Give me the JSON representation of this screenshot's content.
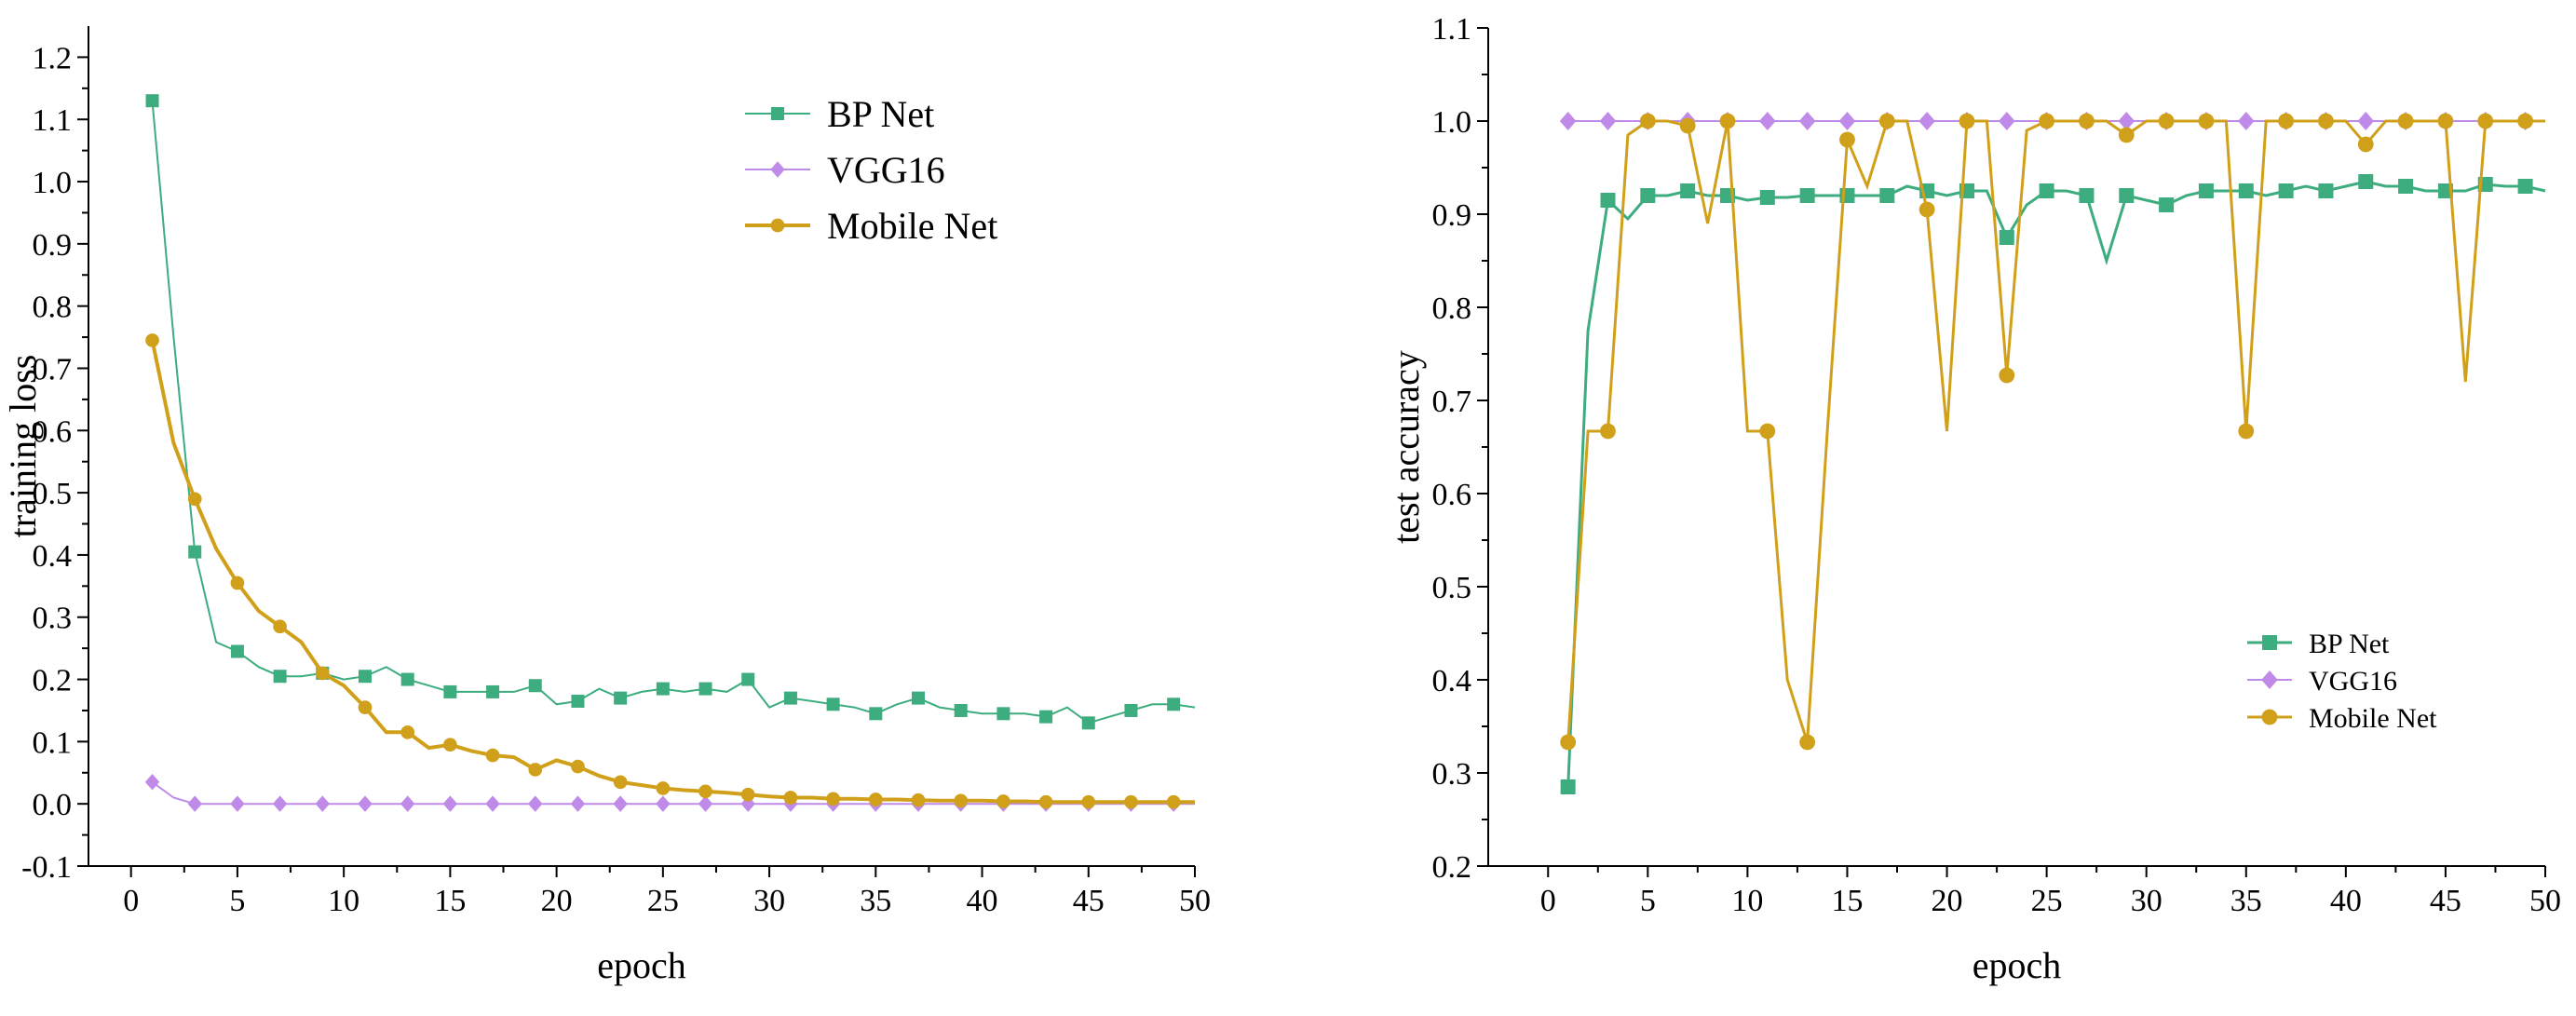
{
  "chart_data": [
    {
      "type": "line",
      "title": "",
      "xlabel": "epoch",
      "ylabel": "training loss",
      "xlim": [
        -2,
        50
      ],
      "ylim": [
        -0.1,
        1.25
      ],
      "xticks": [
        "0",
        "5",
        "10",
        "15",
        "20",
        "25",
        "30",
        "35",
        "40",
        "45",
        "50"
      ],
      "yticks": [
        "-0.1",
        "0.0",
        "0.1",
        "0.2",
        "0.3",
        "0.4",
        "0.5",
        "0.6",
        "0.7",
        "0.8",
        "0.9",
        "1.0",
        "1.1",
        "1.2"
      ],
      "legend_position": "top-right",
      "series": [
        {
          "name": "BP Net",
          "color": "#3dac7e",
          "marker": "square",
          "x": [
            1,
            2,
            3,
            4,
            5,
            6,
            7,
            8,
            9,
            10,
            11,
            12,
            13,
            14,
            15,
            16,
            17,
            18,
            19,
            20,
            21,
            22,
            23,
            24,
            25,
            26,
            27,
            28,
            29,
            30,
            31,
            32,
            33,
            34,
            35,
            36,
            37,
            38,
            39,
            40,
            41,
            42,
            43,
            44,
            45,
            46,
            47,
            48,
            49,
            50
          ],
          "values": [
            1.13,
            0.75,
            0.405,
            0.26,
            0.245,
            0.22,
            0.205,
            0.205,
            0.21,
            0.2,
            0.205,
            0.22,
            0.2,
            0.19,
            0.18,
            0.18,
            0.18,
            0.18,
            0.19,
            0.16,
            0.165,
            0.185,
            0.17,
            0.18,
            0.185,
            0.18,
            0.185,
            0.18,
            0.2,
            0.155,
            0.17,
            0.165,
            0.16,
            0.155,
            0.145,
            0.16,
            0.17,
            0.155,
            0.15,
            0.145,
            0.145,
            0.145,
            0.14,
            0.155,
            0.13,
            0.14,
            0.15,
            0.16,
            0.16,
            0.155
          ]
        },
        {
          "name": "VGG16",
          "color": "#c08ae8",
          "marker": "diamond",
          "x": [
            1,
            2,
            3,
            4,
            5,
            6,
            7,
            8,
            9,
            10,
            11,
            12,
            13,
            14,
            15,
            16,
            17,
            18,
            19,
            20,
            21,
            22,
            23,
            24,
            25,
            26,
            27,
            28,
            29,
            30,
            31,
            32,
            33,
            34,
            35,
            36,
            37,
            38,
            39,
            40,
            41,
            42,
            43,
            44,
            45,
            46,
            47,
            48,
            49,
            50
          ],
          "values": [
            0.035,
            0.01,
            0.0,
            0.0,
            0.0,
            0.0,
            0.0,
            0.0,
            0.0,
            0.0,
            0.0,
            0.0,
            0.0,
            0.0,
            0.0,
            0.0,
            0.0,
            0.0,
            0.0,
            0.0,
            0.0,
            0.0,
            0.0,
            0.0,
            0.0,
            0.0,
            0.0,
            0.0,
            0.0,
            0.0,
            0.0,
            0.0,
            0.0,
            0.0,
            0.0,
            0.0,
            0.0,
            0.0,
            0.0,
            0.0,
            0.0,
            0.0,
            0.0,
            0.0,
            0.0,
            0.0,
            0.0,
            0.0,
            0.0,
            0.0
          ]
        },
        {
          "name": "Mobile Net",
          "color": "#d1a01b",
          "marker": "circle",
          "x": [
            1,
            2,
            3,
            4,
            5,
            6,
            7,
            8,
            9,
            10,
            11,
            12,
            13,
            14,
            15,
            16,
            17,
            18,
            19,
            20,
            21,
            22,
            23,
            24,
            25,
            26,
            27,
            28,
            29,
            30,
            31,
            32,
            33,
            34,
            35,
            36,
            37,
            38,
            39,
            40,
            41,
            42,
            43,
            44,
            45,
            46,
            47,
            48,
            49,
            50
          ],
          "values": [
            0.745,
            0.58,
            0.49,
            0.41,
            0.355,
            0.31,
            0.285,
            0.26,
            0.21,
            0.19,
            0.155,
            0.115,
            0.115,
            0.09,
            0.095,
            0.085,
            0.078,
            0.075,
            0.055,
            0.07,
            0.06,
            0.045,
            0.035,
            0.03,
            0.025,
            0.022,
            0.02,
            0.018,
            0.015,
            0.012,
            0.01,
            0.01,
            0.008,
            0.008,
            0.007,
            0.007,
            0.006,
            0.005,
            0.005,
            0.005,
            0.004,
            0.004,
            0.003,
            0.003,
            0.003,
            0.003,
            0.003,
            0.003,
            0.003,
            0.003
          ]
        }
      ]
    },
    {
      "type": "line",
      "title": "",
      "xlabel": "epoch",
      "ylabel": "test accuracy",
      "xlim": [
        -3,
        50
      ],
      "ylim": [
        0.2,
        1.1
      ],
      "xticks": [
        "0",
        "5",
        "10",
        "15",
        "20",
        "25",
        "30",
        "35",
        "40",
        "45",
        "50"
      ],
      "yticks": [
        "0.2",
        "0.3",
        "0.4",
        "0.5",
        "0.6",
        "0.7",
        "0.8",
        "0.9",
        "1.0",
        "1.1"
      ],
      "legend_position": "bottom-right",
      "series": [
        {
          "name": "BP Net",
          "color": "#3dac7e",
          "marker": "square",
          "x": [
            1,
            2,
            3,
            4,
            5,
            6,
            7,
            8,
            9,
            10,
            11,
            12,
            13,
            14,
            15,
            16,
            17,
            18,
            19,
            20,
            21,
            22,
            23,
            24,
            25,
            26,
            27,
            28,
            29,
            30,
            31,
            32,
            33,
            34,
            35,
            36,
            37,
            38,
            39,
            40,
            41,
            42,
            43,
            44,
            45,
            46,
            47,
            48,
            49,
            50
          ],
          "values": [
            0.285,
            0.775,
            0.915,
            0.895,
            0.92,
            0.92,
            0.925,
            0.92,
            0.92,
            0.915,
            0.918,
            0.918,
            0.92,
            0.92,
            0.92,
            0.92,
            0.92,
            0.93,
            0.925,
            0.92,
            0.925,
            0.925,
            0.875,
            0.91,
            0.925,
            0.925,
            0.92,
            0.85,
            0.92,
            0.915,
            0.91,
            0.92,
            0.925,
            0.925,
            0.925,
            0.92,
            0.925,
            0.93,
            0.925,
            0.93,
            0.935,
            0.93,
            0.93,
            0.925,
            0.925,
            0.925,
            0.932,
            0.93,
            0.93,
            0.925
          ]
        },
        {
          "name": "VGG16",
          "color": "#c08ae8",
          "marker": "diamond",
          "x": [
            1,
            2,
            3,
            4,
            5,
            6,
            7,
            8,
            9,
            10,
            11,
            12,
            13,
            14,
            15,
            16,
            17,
            18,
            19,
            20,
            21,
            22,
            23,
            24,
            25,
            26,
            27,
            28,
            29,
            30,
            31,
            32,
            33,
            34,
            35,
            36,
            37,
            38,
            39,
            40,
            41,
            42,
            43,
            44,
            45,
            46,
            47,
            48,
            49,
            50
          ],
          "values": [
            1.0,
            1.0,
            1.0,
            1.0,
            1.0,
            1.0,
            1.0,
            1.0,
            1.0,
            1.0,
            1.0,
            1.0,
            1.0,
            1.0,
            1.0,
            1.0,
            1.0,
            1.0,
            1.0,
            1.0,
            1.0,
            1.0,
            1.0,
            1.0,
            1.0,
            1.0,
            1.0,
            1.0,
            1.0,
            1.0,
            1.0,
            1.0,
            1.0,
            1.0,
            1.0,
            1.0,
            1.0,
            1.0,
            1.0,
            1.0,
            1.0,
            1.0,
            1.0,
            1.0,
            1.0,
            1.0,
            1.0,
            1.0,
            1.0,
            1.0
          ]
        },
        {
          "name": "Mobile Net",
          "color": "#d1a01b",
          "marker": "circle",
          "x": [
            1,
            2,
            3,
            4,
            5,
            6,
            7,
            8,
            9,
            10,
            11,
            12,
            13,
            14,
            15,
            16,
            17,
            18,
            19,
            20,
            21,
            22,
            23,
            24,
            25,
            26,
            27,
            28,
            29,
            30,
            31,
            32,
            33,
            34,
            35,
            36,
            37,
            38,
            39,
            40,
            41,
            42,
            43,
            44,
            45,
            46,
            47,
            48,
            49,
            50
          ],
          "values": [
            0.333,
            0.667,
            0.667,
            0.985,
            1.0,
            1.0,
            0.995,
            0.89,
            1.0,
            0.667,
            0.667,
            0.4,
            0.333,
            0.667,
            0.98,
            0.93,
            1.0,
            1.0,
            0.905,
            0.667,
            1.0,
            1.0,
            0.727,
            0.99,
            1.0,
            1.0,
            1.0,
            1.0,
            0.985,
            1.0,
            1.0,
            1.0,
            1.0,
            1.0,
            0.667,
            1.0,
            1.0,
            1.0,
            1.0,
            1.0,
            0.975,
            1.0,
            1.0,
            1.0,
            1.0,
            0.72,
            1.0,
            1.0,
            1.0,
            1.0
          ]
        }
      ]
    }
  ]
}
